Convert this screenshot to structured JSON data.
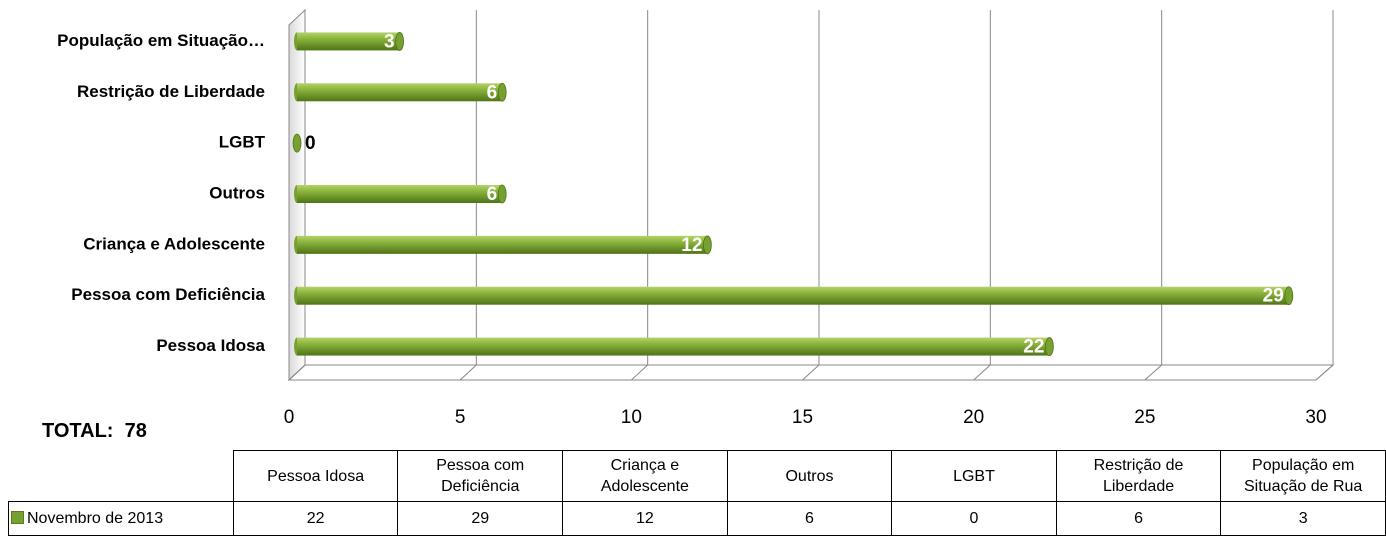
{
  "chart_data": {
    "type": "bar",
    "orientation": "horizontal",
    "categories": [
      "Pessoa Idosa",
      "Pessoa com Deficiência",
      "Criança e Adolescente",
      "Outros",
      "LGBT",
      "Restrição de Liberdade",
      "População em Situação…"
    ],
    "table_columns": [
      "Pessoa Idosa",
      "Pessoa com Deficiência",
      "Criança e Adolescente",
      "Outros",
      "LGBT",
      "Restrição de Liberdade",
      "População em Situação de Rua"
    ],
    "series": [
      {
        "name": "Novembro de 2013",
        "color": "#76a030",
        "values": [
          22,
          29,
          12,
          6,
          0,
          6,
          3
        ]
      }
    ],
    "xlim": [
      0,
      30
    ],
    "xticks": [
      0,
      5,
      10,
      15,
      20,
      25,
      30
    ],
    "grid": true,
    "total_label": "TOTAL:",
    "total": 78
  }
}
